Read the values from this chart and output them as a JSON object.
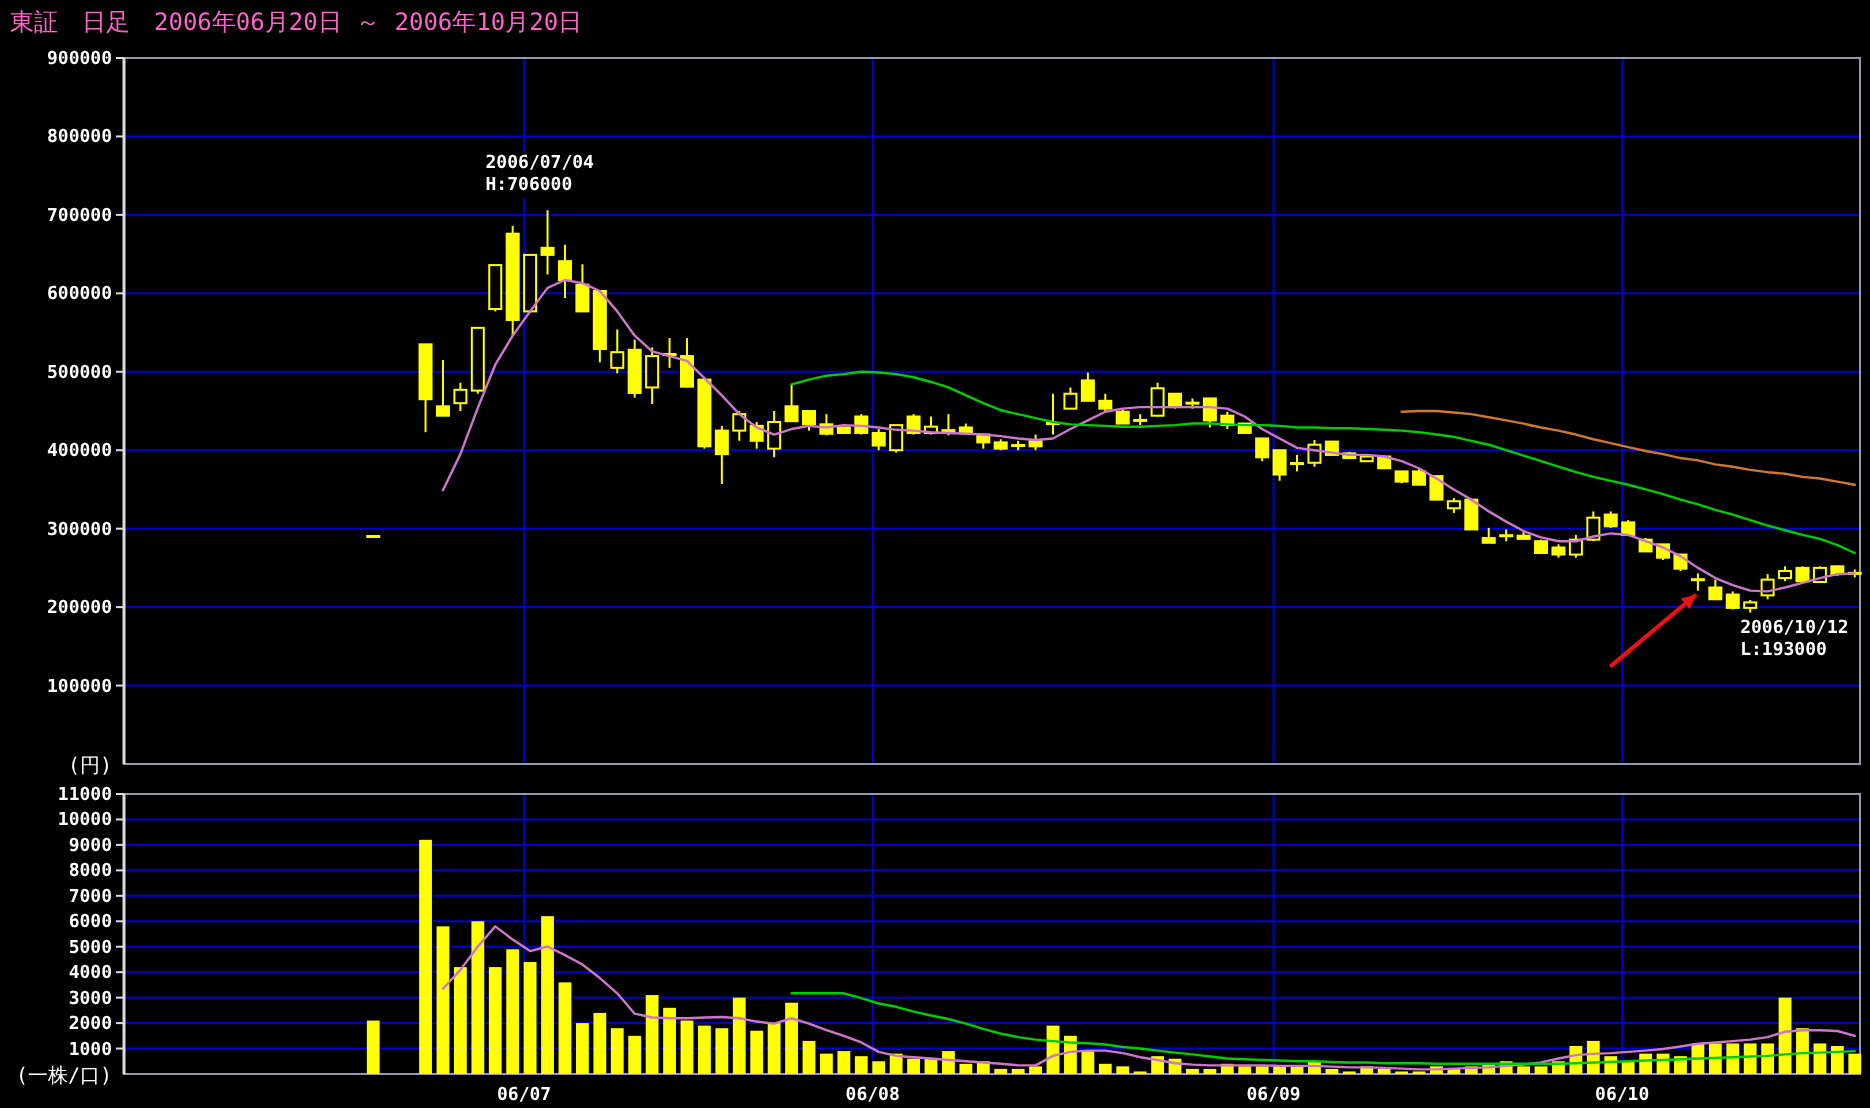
{
  "chart_data": [
    {
      "type": "candlestick",
      "title": "東証　日足　2006年06月20日 ～ 2006年10月20日",
      "ylabel": "(円)",
      "grid": true,
      "tick_labels": "y",
      "categories": [
        null,
        null,
        null,
        null,
        null,
        null,
        null,
        null,
        null,
        null,
        null,
        null,
        null,
        null,
        null,
        null,
        null,
        null,
        null,
        null,
        null,
        null,
        null,
        null,
        null,
        null,
        null,
        null,
        null,
        null,
        null,
        null,
        null,
        null,
        null,
        null,
        null,
        null,
        null,
        null,
        null,
        null,
        null,
        null,
        null,
        null,
        null,
        null,
        null,
        null,
        null,
        null,
        null,
        null,
        null,
        null,
        null,
        null,
        null,
        null,
        null,
        null,
        null,
        null,
        null,
        null,
        null,
        null,
        null,
        null,
        null,
        null,
        null,
        null,
        null,
        null,
        null,
        null,
        null,
        null,
        null,
        null,
        null,
        null,
        null,
        null
      ],
      "ylim": [
        0,
        900000
      ],
      "yticks": [
        100000,
        200000,
        300000,
        400000,
        500000,
        600000,
        700000,
        800000,
        900000
      ],
      "annotations": [
        {
          "text": "2006/07/04\nH:706000",
          "y": 706000
        },
        "2006/10/12\nL:193000"
      ],
      "series": [
        {
          "color": "#ffff00",
          "ohlc": [
            [
              290000,
              290000,
              290000,
              290000
            ],
            null,
            null,
            [
              535000,
              535000,
              423000,
              465000
            ],
            [
              456000,
              515000,
              444000,
              444000
            ],
            [
              460000,
              486000,
              450000,
              477000
            ],
            [
              476000,
              556000,
              472000,
              556000
            ],
            [
              580000,
              636000,
              577000,
              636000
            ],
            [
              676000,
              686000,
              546000,
              566000
            ],
            [
              577000,
              649000,
              575000,
              649000
            ],
            [
              658000,
              706000,
              624000,
              649000
            ],
            [
              641000,
              662000,
              594000,
              617000
            ],
            [
              611000,
              637000,
              577000,
              577000
            ],
            [
              603000,
              603000,
              512000,
              529000
            ],
            [
              505000,
              554000,
              498000,
              525000
            ],
            [
              528000,
              541000,
              467000,
              473000
            ],
            [
              480000,
              531000,
              459000,
              520000
            ],
            [
              522000,
              543000,
              505000,
              522000
            ],
            [
              520000,
              543000,
              480000,
              481000
            ],
            [
              490000,
              490000,
              402000,
              405000
            ],
            [
              425000,
              431000,
              357000,
              395000
            ],
            [
              425000,
              450000,
              412000,
              446000
            ],
            [
              431000,
              436000,
              402000,
              412000
            ],
            [
              402000,
              450000,
              391000,
              436000
            ],
            [
              456000,
              484000,
              437000,
              437000
            ],
            [
              450000,
              450000,
              425000,
              433000
            ],
            [
              433000,
              446000,
              419000,
              421000
            ],
            [
              429000,
              429000,
              422000,
              422000
            ],
            [
              443000,
              446000,
              420000,
              422000
            ],
            [
              422000,
              427000,
              400000,
              406000
            ],
            [
              400000,
              432000,
              397000,
              432000
            ],
            [
              443000,
              446000,
              420000,
              422000
            ],
            [
              422000,
              443000,
              420000,
              430000
            ],
            [
              425000,
              446000,
              419000,
              425000
            ],
            [
              429000,
              434000,
              420000,
              422000
            ],
            [
              420000,
              420000,
              402000,
              410000
            ],
            [
              410000,
              414000,
              400000,
              402000
            ],
            [
              406000,
              412000,
              400000,
              406000
            ],
            [
              412000,
              420000,
              400000,
              405000
            ],
            [
              434000,
              472000,
              420000,
              434000
            ],
            [
              453000,
              480000,
              453000,
              472000
            ],
            [
              489000,
              499000,
              463000,
              463000
            ],
            [
              463000,
              472000,
              449000,
              453000
            ],
            [
              449000,
              453000,
              434000,
              434000
            ],
            [
              438000,
              446000,
              432000,
              438000
            ],
            [
              444000,
              486000,
              443000,
              479000
            ],
            [
              472000,
              472000,
              453000,
              455000
            ],
            [
              460000,
              466000,
              453000,
              460000
            ],
            [
              466000,
              466000,
              429000,
              438000
            ],
            [
              444000,
              449000,
              427000,
              432000
            ],
            [
              434000,
              434000,
              422000,
              422000
            ],
            [
              415000,
              415000,
              386000,
              391000
            ],
            [
              400000,
              400000,
              361000,
              369000
            ],
            [
              383000,
              394000,
              373000,
              383000
            ],
            [
              384000,
              413000,
              379000,
              407000
            ],
            [
              411000,
              411000,
              394000,
              394000
            ],
            [
              396000,
              398000,
              389000,
              390000
            ],
            [
              386000,
              393000,
              385000,
              392000
            ],
            [
              392000,
              393000,
              377000,
              377000
            ],
            [
              373000,
              373000,
              358000,
              360000
            ],
            [
              373000,
              377000,
              356000,
              356000
            ],
            [
              367000,
              367000,
              336000,
              337000
            ],
            [
              326000,
              339000,
              320000,
              335000
            ],
            [
              337000,
              337000,
              299000,
              299000
            ],
            [
              288000,
              301000,
              282000,
              282000
            ],
            [
              291000,
              299000,
              284000,
              291000
            ],
            [
              291000,
              297000,
              286000,
              287000
            ],
            [
              284000,
              286000,
              269000,
              269000
            ],
            [
              276000,
              280000,
              263000,
              267000
            ],
            [
              267000,
              292000,
              263000,
              286000
            ],
            [
              286000,
              322000,
              284000,
              314000
            ],
            [
              318000,
              322000,
              301000,
              303000
            ],
            [
              308000,
              311000,
              291000,
              292000
            ],
            [
              286000,
              288000,
              271000,
              271000
            ],
            [
              280000,
              280000,
              260000,
              263000
            ],
            [
              267000,
              267000,
              246000,
              249000
            ],
            [
              235000,
              243000,
              221000,
              235000
            ],
            [
              225000,
              235000,
              209000,
              210000
            ],
            [
              216000,
              220000,
              197000,
              199000
            ],
            [
              199000,
              209000,
              193000,
              206000
            ],
            [
              215000,
              242000,
              210000,
              235000
            ],
            [
              237000,
              252000,
              233000,
              246000
            ],
            [
              250000,
              252000,
              233000,
              233000
            ],
            [
              232000,
              252000,
              231000,
              250000
            ],
            [
              252000,
              253000,
              240000,
              242000
            ],
            [
              243000,
              248000,
              238000,
              243000
            ]
          ]
        },
        {
          "type": "line",
          "color": "#cc77cc",
          "values": [
            null,
            null,
            null,
            null,
            349000,
            395000,
            454000,
            509000,
            546000,
            577000,
            607000,
            617000,
            613000,
            603000,
            577000,
            546000,
            526000,
            520000,
            514000,
            492000,
            470000,
            446000,
            429000,
            420000,
            427000,
            431000,
            429000,
            432000,
            431000,
            429000,
            426000,
            425000,
            423000,
            422000,
            421000,
            420000,
            418000,
            415000,
            413000,
            415000,
            427000,
            438000,
            449000,
            453000,
            455000,
            455000,
            455000,
            455000,
            455000,
            453000,
            443000,
            427000,
            415000,
            403000,
            400000,
            397000,
            394000,
            394000,
            392000,
            386000,
            377000,
            364000,
            350000,
            337000,
            322000,
            309000,
            297000,
            289000,
            284000,
            284000,
            290000,
            294000,
            292000,
            284000,
            276000,
            265000,
            250000,
            237000,
            228000,
            221000,
            220000,
            225000,
            231000,
            237000,
            242000,
            243000
          ]
        },
        {
          "type": "line",
          "color": "#00cc00",
          "values": [
            null,
            null,
            null,
            null,
            null,
            null,
            null,
            null,
            null,
            null,
            null,
            null,
            null,
            null,
            null,
            null,
            null,
            null,
            null,
            null,
            null,
            null,
            null,
            null,
            484000,
            490000,
            495000,
            497000,
            500000,
            499000,
            497000,
            493000,
            487000,
            480000,
            470000,
            460000,
            451000,
            446000,
            441000,
            436000,
            433000,
            432000,
            431000,
            430000,
            430000,
            431000,
            432000,
            434000,
            434000,
            433000,
            432000,
            432000,
            431000,
            429000,
            429000,
            428000,
            428000,
            427000,
            426000,
            425000,
            423000,
            420000,
            417000,
            412000,
            407000,
            400000,
            393000,
            386000,
            379000,
            372000,
            366000,
            361000,
            356000,
            350000,
            344000,
            337000,
            331000,
            324000,
            318000,
            311000,
            304000,
            298000,
            292000,
            287000,
            279000,
            269000
          ]
        },
        {
          "type": "line",
          "color": "#cc7733",
          "values": [
            null,
            null,
            null,
            null,
            null,
            null,
            null,
            null,
            null,
            null,
            null,
            null,
            null,
            null,
            null,
            null,
            null,
            null,
            null,
            null,
            null,
            null,
            null,
            null,
            null,
            null,
            null,
            null,
            null,
            null,
            null,
            null,
            null,
            null,
            null,
            null,
            null,
            null,
            null,
            null,
            null,
            null,
            null,
            null,
            null,
            null,
            null,
            null,
            null,
            null,
            null,
            null,
            null,
            null,
            null,
            null,
            null,
            null,
            null,
            449000,
            450000,
            450000,
            448000,
            446000,
            442000,
            438000,
            434000,
            429000,
            425000,
            420000,
            414000,
            409000,
            404000,
            399000,
            395000,
            390000,
            387000,
            382000,
            379000,
            375000,
            372000,
            370000,
            366000,
            364000,
            360000,
            356000
          ]
        }
      ]
    },
    {
      "type": "bar",
      "ylabel": "(一株/口)",
      "grid": true,
      "categories": [
        null,
        null,
        null,
        null,
        null,
        null,
        null,
        null,
        null,
        "06/07",
        null,
        null,
        null,
        null,
        null,
        null,
        null,
        null,
        null,
        null,
        null,
        null,
        null,
        null,
        null,
        null,
        null,
        null,
        null,
        "06/08",
        null,
        null,
        null,
        null,
        null,
        null,
        null,
        null,
        null,
        null,
        null,
        null,
        null,
        null,
        null,
        null,
        null,
        null,
        null,
        null,
        null,
        null,
        "06/09",
        null,
        null,
        null,
        null,
        null,
        null,
        null,
        null,
        null,
        null,
        null,
        null,
        null,
        null,
        null,
        null,
        null,
        null,
        null,
        "06/10",
        null,
        null,
        null,
        null,
        null,
        null,
        null,
        null,
        null,
        null,
        null,
        null,
        null
      ],
      "ylim": [
        0,
        11000
      ],
      "yticks": [
        1000,
        2000,
        3000,
        4000,
        5000,
        6000,
        7000,
        8000,
        9000,
        10000,
        11000
      ],
      "series": [
        {
          "color": "#ffff00",
          "values": [
            2100,
            null,
            null,
            9200,
            5800,
            4200,
            6000,
            4200,
            4900,
            4400,
            6200,
            3600,
            2000,
            2400,
            1800,
            1500,
            3100,
            2600,
            2100,
            1900,
            1800,
            3000,
            1700,
            2000,
            2800,
            1300,
            800,
            900,
            700,
            500,
            800,
            600,
            600,
            900,
            400,
            500,
            200,
            200,
            300,
            1900,
            1500,
            900,
            400,
            300,
            100,
            700,
            600,
            200,
            200,
            400,
            300,
            300,
            300,
            300,
            500,
            200,
            100,
            300,
            200,
            100,
            100,
            300,
            200,
            300,
            400,
            500,
            300,
            300,
            500,
            1100,
            1300,
            700,
            500,
            800,
            800,
            700,
            1200,
            1200,
            1200,
            1200,
            1200,
            3000,
            1800,
            1200,
            1100,
            800
          ]
        },
        {
          "type": "line",
          "color": "#cc77cc",
          "values": [
            null,
            null,
            null,
            null,
            3350,
            4090,
            5010,
            5800,
            5280,
            4830,
            5010,
            4670,
            4300,
            3770,
            3170,
            2370,
            2220,
            2190,
            2190,
            2220,
            2240,
            2190,
            2060,
            1980,
            2190,
            1980,
            1720,
            1500,
            1240,
            870,
            710,
            660,
            610,
            550,
            500,
            450,
            400,
            340,
            340,
            710,
            870,
            920,
            920,
            820,
            660,
            550,
            420,
            370,
            340,
            340,
            340,
            340,
            320,
            320,
            320,
            290,
            260,
            260,
            240,
            210,
            180,
            180,
            210,
            240,
            260,
            320,
            370,
            450,
            610,
            740,
            790,
            820,
            870,
            920,
            980,
            1080,
            1190,
            1240,
            1290,
            1350,
            1450,
            1660,
            1720,
            1720,
            1690,
            1500
          ]
        },
        {
          "type": "line",
          "color": "#00cc00",
          "values": [
            null,
            null,
            null,
            null,
            null,
            null,
            null,
            null,
            null,
            null,
            null,
            null,
            null,
            null,
            null,
            null,
            null,
            null,
            null,
            null,
            null,
            null,
            null,
            null,
            3170,
            3170,
            3170,
            3170,
            2980,
            2770,
            2640,
            2450,
            2300,
            2160,
            1980,
            1770,
            1580,
            1450,
            1350,
            1290,
            1240,
            1210,
            1160,
            1060,
            1000,
            920,
            840,
            770,
            690,
            610,
            580,
            550,
            530,
            500,
            500,
            470,
            450,
            450,
            420,
            420,
            420,
            400,
            400,
            400,
            400,
            400,
            400,
            400,
            400,
            420,
            450,
            470,
            500,
            530,
            550,
            580,
            610,
            630,
            660,
            690,
            710,
            770,
            820,
            840,
            870,
            900
          ]
        }
      ]
    }
  ]
}
